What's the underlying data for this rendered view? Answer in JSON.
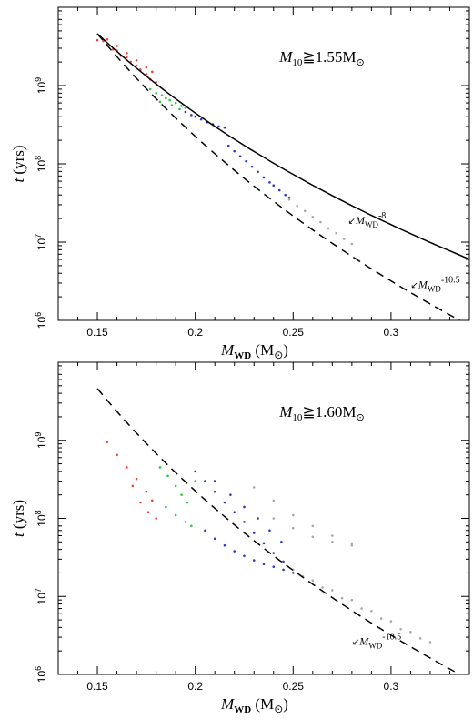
{
  "figure": {
    "chart_data": [
      {
        "type": "scatter",
        "panel": "top",
        "label": "M10≧1.55M⊙",
        "xlabel": "MWD (M⊙)",
        "ylabel": "t (yrs)",
        "xlim": [
          0.13,
          0.34
        ],
        "ylim_log10": [
          6,
          10
        ],
        "y_scale": "log",
        "x_ticks": [
          "0.15",
          "0.2",
          "0.25",
          "0.3"
        ],
        "y_ticks": [
          "10^6",
          "10^7",
          "10^8",
          "10^9"
        ],
        "grid": false,
        "curves": [
          {
            "name": "MWD^-8",
            "style": "solid",
            "x": [
              0.15,
              0.34
            ],
            "y": [
              4600000000.0,
              6060000.0
            ]
          },
          {
            "name": "MWD^-10.5",
            "style": "dashed",
            "x": [
              0.15,
              0.34
            ],
            "y": [
              4600000000.0,
              858000.0
            ]
          }
        ],
        "series": [
          {
            "color": "#e8443a",
            "points": [
              [
                0.15,
                3800000000.0
              ],
              [
                0.153,
                3700000000.0
              ],
              [
                0.155,
                3300000000.0
              ],
              [
                0.158,
                2900000000.0
              ],
              [
                0.16,
                2800000000.0
              ],
              [
                0.162,
                2400000000.0
              ],
              [
                0.165,
                2300000000.0
              ],
              [
                0.167,
                2000000000.0
              ],
              [
                0.17,
                1800000000.0
              ],
              [
                0.172,
                1600000000.0
              ],
              [
                0.175,
                1400000000.0
              ],
              [
                0.177,
                1200000000.0
              ],
              [
                0.18,
                1100000000.0
              ],
              [
                0.155,
                3900000000.0
              ],
              [
                0.16,
                3200000000.0
              ],
              [
                0.165,
                2600000000.0
              ],
              [
                0.17,
                2100000000.0
              ],
              [
                0.175,
                1700000000.0
              ],
              [
                0.178,
                1500000000.0
              ]
            ]
          },
          {
            "color": "#2ec83a",
            "points": [
              [
                0.177,
                900000000.0
              ],
              [
                0.18,
                800000000.0
              ],
              [
                0.183,
                750000000.0
              ],
              [
                0.185,
                690000000.0
              ],
              [
                0.187,
                650000000.0
              ],
              [
                0.19,
                600000000.0
              ],
              [
                0.193,
                550000000.0
              ],
              [
                0.195,
                520000000.0
              ],
              [
                0.182,
                620000000.0
              ],
              [
                0.188,
                560000000.0
              ],
              [
                0.192,
                500000000.0
              ]
            ]
          },
          {
            "color": "#2a37c8",
            "points": [
              [
                0.195,
                460000000.0
              ],
              [
                0.198,
                420000000.0
              ],
              [
                0.2,
                400000000.0
              ],
              [
                0.203,
                370000000.0
              ],
              [
                0.206,
                340000000.0
              ],
              [
                0.209,
                320000000.0
              ],
              [
                0.212,
                300000000.0
              ],
              [
                0.215,
                290000000.0
              ],
              [
                0.217,
                170000000.0
              ],
              [
                0.22,
                145000000.0
              ],
              [
                0.223,
                125000000.0
              ],
              [
                0.226,
                108000000.0
              ],
              [
                0.229,
                92000000.0
              ],
              [
                0.232,
                79000000.0
              ],
              [
                0.235,
                67000000.0
              ],
              [
                0.238,
                58000000.0
              ],
              [
                0.24,
                53000000.0
              ],
              [
                0.243,
                46000000.0
              ],
              [
                0.246,
                40000000.0
              ],
              [
                0.248,
                37000000.0
              ]
            ]
          },
          {
            "color": "#a8a8a8",
            "points": [
              [
                0.248,
                35000000.0
              ],
              [
                0.252,
                29000000.0
              ],
              [
                0.256,
                25000000.0
              ],
              [
                0.26,
                21000000.0
              ],
              [
                0.264,
                18000000.0
              ],
              [
                0.268,
                15000000.0
              ],
              [
                0.272,
                13000000.0
              ],
              [
                0.276,
                11000000.0
              ],
              [
                0.28,
                9500000.0
              ]
            ]
          }
        ],
        "annotations": [
          {
            "text": "MWD^-8",
            "at": [
              0.278,
              17000000.0
            ]
          },
          {
            "text": "MWD^-10.5",
            "at": [
              0.31,
              2600000.0
            ]
          }
        ]
      },
      {
        "type": "scatter",
        "panel": "bottom",
        "label": "M10≧1.60M⊙",
        "xlabel": "MWD (M⊙)",
        "ylabel": "t (yrs)",
        "xlim": [
          0.13,
          0.34
        ],
        "ylim_log10": [
          6,
          10
        ],
        "y_scale": "log",
        "x_ticks": [
          "0.15",
          "0.2",
          "0.25",
          "0.3"
        ],
        "y_ticks": [
          "10^6",
          "10^7",
          "10^8",
          "10^9"
        ],
        "grid": false,
        "curves": [
          {
            "name": "MWD^-10.5",
            "style": "dashed",
            "x": [
              0.15,
              0.34
            ],
            "y": [
              4600000000.0,
              858000.0
            ]
          }
        ],
        "series": [
          {
            "color": "#e8443a",
            "points": [
              [
                0.155,
                950000000.0
              ],
              [
                0.16,
                650000000.0
              ],
              [
                0.165,
                450000000.0
              ],
              [
                0.17,
                320000000.0
              ],
              [
                0.175,
                220000000.0
              ],
              [
                0.178,
                170000000.0
              ],
              [
                0.168,
                260000000.0
              ],
              [
                0.172,
                160000000.0
              ],
              [
                0.176,
                120000000.0
              ],
              [
                0.18,
                100000000.0
              ]
            ]
          },
          {
            "color": "#2ec83a",
            "points": [
              [
                0.182,
                450000000.0
              ],
              [
                0.186,
                350000000.0
              ],
              [
                0.19,
                260000000.0
              ],
              [
                0.193,
                200000000.0
              ],
              [
                0.196,
                160000000.0
              ],
              [
                0.185,
                140000000.0
              ],
              [
                0.19,
                110000000.0
              ],
              [
                0.195,
                90000000.0
              ],
              [
                0.198,
                80000000.0
              ],
              [
                0.2,
                300000000.0
              ]
            ]
          },
          {
            "color": "#2a37c8",
            "points": [
              [
                0.2,
                400000000.0
              ],
              [
                0.205,
                300000000.0
              ],
              [
                0.21,
                220000000.0
              ],
              [
                0.215,
                160000000.0
              ],
              [
                0.22,
                120000000.0
              ],
              [
                0.225,
                90000000.0
              ],
              [
                0.23,
                65000000.0
              ],
              [
                0.235,
                48000000.0
              ],
              [
                0.24,
                36000000.0
              ],
              [
                0.245,
                28000000.0
              ],
              [
                0.205,
                70000000.0
              ],
              [
                0.21,
                55000000.0
              ],
              [
                0.215,
                45000000.0
              ],
              [
                0.22,
                38000000.0
              ],
              [
                0.225,
                33000000.0
              ],
              [
                0.23,
                29000000.0
              ],
              [
                0.235,
                26000000.0
              ],
              [
                0.24,
                24000000.0
              ],
              [
                0.245,
                22000000.0
              ],
              [
                0.25,
                20000000.0
              ],
              [
                0.21,
                300000000.0
              ],
              [
                0.218,
                200000000.0
              ],
              [
                0.225,
                140000000.0
              ],
              [
                0.232,
                100000000.0
              ],
              [
                0.238,
                70000000.0
              ],
              [
                0.244,
                50000000.0
              ]
            ]
          },
          {
            "color": "#a8a8a8",
            "points": [
              [
                0.23,
                250000000.0
              ],
              [
                0.24,
                170000000.0
              ],
              [
                0.25,
                110000000.0
              ],
              [
                0.26,
                80000000.0
              ],
              [
                0.27,
                60000000.0
              ],
              [
                0.28,
                48000000.0
              ],
              [
                0.24,
                100000000.0
              ],
              [
                0.25,
                75000000.0
              ],
              [
                0.26,
                58000000.0
              ],
              [
                0.27,
                50000000.0
              ],
              [
                0.28,
                45000000.0
              ],
              [
                0.25,
                22000000.0
              ],
              [
                0.26,
                16000000.0
              ],
              [
                0.27,
                12000000.0
              ],
              [
                0.28,
                9000000.0
              ],
              [
                0.29,
                6500000.0
              ],
              [
                0.3,
                4800000.0
              ],
              [
                0.31,
                3500000.0
              ],
              [
                0.32,
                2600000.0
              ],
              [
                0.255,
                18000000.0
              ],
              [
                0.265,
                13000000.0
              ],
              [
                0.275,
                9500000.0
              ],
              [
                0.285,
                7000000.0
              ],
              [
                0.295,
                5200000.0
              ],
              [
                0.305,
                3800000.0
              ],
              [
                0.315,
                2900000.0
              ]
            ]
          }
        ],
        "annotations": [
          {
            "text": "MWD^-10.5",
            "at": [
              0.28,
              2400000.0
            ]
          }
        ]
      }
    ]
  }
}
